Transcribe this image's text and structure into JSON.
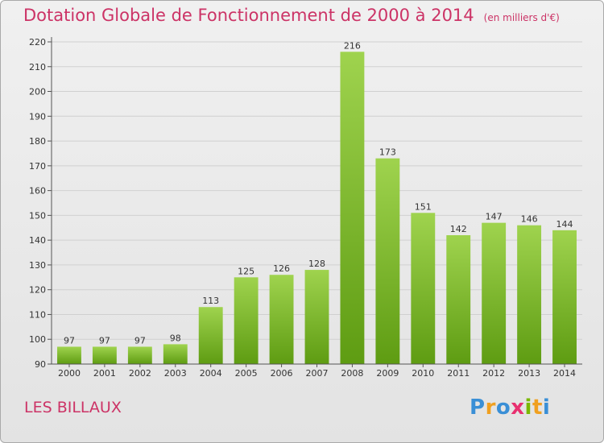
{
  "title": "Dotation Globale de Fonctionnement de 2000 à 2014",
  "unit": "(en milliers d'€)",
  "commune": "LES BILLAUX",
  "logo": {
    "text": "Proxiti",
    "letters": [
      "P",
      "r",
      "o",
      "x",
      "i",
      "t",
      "i"
    ],
    "colors": [
      "#3a8fd6",
      "#f0a020",
      "#3a8fd6",
      "#e83070",
      "#7ab800",
      "#f0a020",
      "#3a8fd6"
    ]
  },
  "colors": {
    "title": "#cc3366",
    "bar_light": "#9fd34e",
    "bar_dark": "#5e9c12"
  },
  "chart_data": {
    "type": "bar",
    "categories": [
      "2000",
      "2001",
      "2002",
      "2003",
      "2004",
      "2005",
      "2006",
      "2007",
      "2008",
      "2009",
      "2010",
      "2011",
      "2012",
      "2013",
      "2014"
    ],
    "values": [
      97,
      97,
      97,
      98,
      113,
      125,
      126,
      128,
      216,
      173,
      151,
      142,
      147,
      146,
      144
    ],
    "title": "Dotation Globale de Fonctionnement de 2000 à 2014",
    "ylim": [
      90,
      220
    ],
    "yticks": [
      90,
      100,
      110,
      120,
      130,
      140,
      150,
      160,
      170,
      180,
      190,
      200,
      210,
      220
    ],
    "grid": true,
    "legend": "none"
  }
}
